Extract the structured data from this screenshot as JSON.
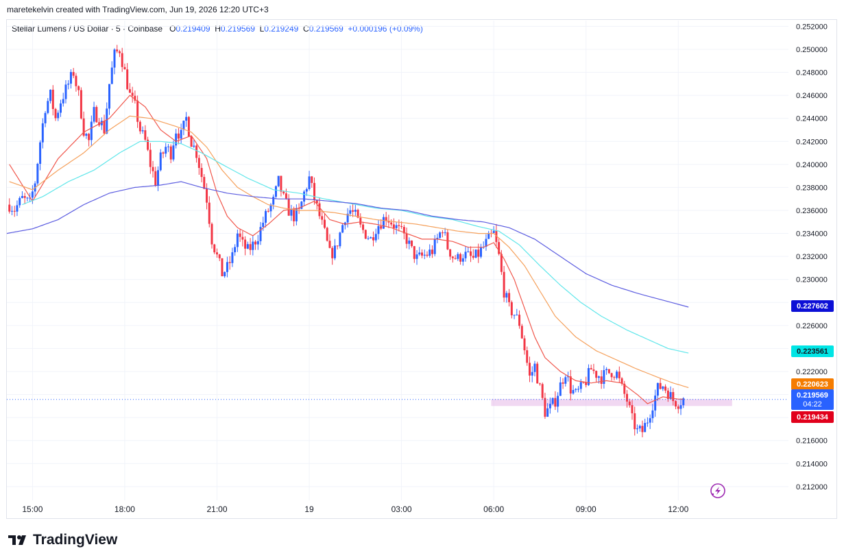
{
  "header": {
    "credit": "maretekelvin created with TradingView.com, Jun 19, 2026 12:20 UTC+3"
  },
  "legend": {
    "symbol": "Stellar Lumens / US Dollar · 5 · Coinbase",
    "open_label": "O",
    "open": "0.219409",
    "high_label": "H",
    "high": "0.219569",
    "low_label": "L",
    "low": "0.219249",
    "close_label": "C",
    "close": "0.219569",
    "change": "+0.000196 (+0.09%)"
  },
  "price_badges": [
    {
      "label": "0.227602",
      "color": "#0c0fd6"
    },
    {
      "label": "0.223561",
      "color": "#00e5e5"
    },
    {
      "label": "0.220623",
      "color": "#f57c00"
    },
    {
      "label": "0.219569",
      "sub": "04:22",
      "color": "#2962ff"
    },
    {
      "label": "0.219434",
      "color": "#e1001b"
    }
  ],
  "footer": {
    "brand": "TradingView"
  },
  "chart_data": {
    "type": "candlestick",
    "title": "Stellar Lumens / US Dollar · 5 · Coinbase",
    "interval": "5",
    "exchange": "Coinbase",
    "ylim": [
      0.2108,
      0.2525
    ],
    "ytick_values": [
      0.212,
      0.214,
      0.216,
      0.218,
      0.22,
      0.222,
      0.224,
      0.226,
      0.228,
      0.23,
      0.232,
      0.234,
      0.236,
      0.238,
      0.24,
      0.242,
      0.244,
      0.246,
      0.248,
      0.25,
      0.252
    ],
    "ytick_labels": [
      "0.212000",
      "0.214000",
      "0.216000",
      "0.218000",
      "0.220000",
      "0.222000",
      "0.224000",
      "0.226000",
      "0.228000",
      "0.230000",
      "0.232000",
      "0.234000",
      "0.236000",
      "0.238000",
      "0.240000",
      "0.242000",
      "0.244000",
      "0.246000",
      "0.248000",
      "0.250000",
      "0.252000"
    ],
    "xticks": [
      {
        "label": "15:00",
        "t": 0
      },
      {
        "label": "18:00",
        "t": 36
      },
      {
        "label": "21:00",
        "t": 72
      },
      {
        "label": "19",
        "t": 108
      },
      {
        "label": "03:00",
        "t": 144
      },
      {
        "label": "06:00",
        "t": 180
      },
      {
        "label": "09:00",
        "t": 216
      },
      {
        "label": "12:00",
        "t": 252
      }
    ],
    "x_range": [
      -10,
      295
    ],
    "up_color": "#2962ff",
    "down_color": "#f23645",
    "close_anchors": [
      [
        -9,
        0.2365
      ],
      [
        -7,
        0.2361
      ],
      [
        -4,
        0.237
      ],
      [
        -1,
        0.2366
      ],
      [
        1,
        0.2385
      ],
      [
        3,
        0.242
      ],
      [
        5,
        0.245
      ],
      [
        7,
        0.246
      ],
      [
        9,
        0.244
      ],
      [
        11,
        0.2455
      ],
      [
        14,
        0.247
      ],
      [
        16,
        0.248
      ],
      [
        18,
        0.246
      ],
      [
        20,
        0.243
      ],
      [
        22,
        0.242
      ],
      [
        24,
        0.2445
      ],
      [
        26,
        0.244
      ],
      [
        28,
        0.243
      ],
      [
        30,
        0.247
      ],
      [
        32,
        0.2495
      ],
      [
        34,
        0.25
      ],
      [
        36,
        0.248
      ],
      [
        38,
        0.246
      ],
      [
        40,
        0.245
      ],
      [
        42,
        0.243
      ],
      [
        44,
        0.242
      ],
      [
        46,
        0.24
      ],
      [
        48,
        0.2385
      ],
      [
        50,
        0.2405
      ],
      [
        52,
        0.2415
      ],
      [
        54,
        0.241
      ],
      [
        56,
        0.243
      ],
      [
        58,
        0.2425
      ],
      [
        60,
        0.244
      ],
      [
        62,
        0.242
      ],
      [
        64,
        0.241
      ],
      [
        66,
        0.239
      ],
      [
        68,
        0.237
      ],
      [
        70,
        0.2335
      ],
      [
        72,
        0.232
      ],
      [
        74,
        0.2305
      ],
      [
        76,
        0.231
      ],
      [
        78,
        0.232
      ],
      [
        80,
        0.234
      ],
      [
        82,
        0.233
      ],
      [
        84,
        0.2325
      ],
      [
        86,
        0.233
      ],
      [
        88,
        0.2338
      ],
      [
        90,
        0.235
      ],
      [
        92,
        0.236
      ],
      [
        94,
        0.2368
      ],
      [
        96,
        0.2385
      ],
      [
        98,
        0.237
      ],
      [
        100,
        0.236
      ],
      [
        102,
        0.2355
      ],
      [
        104,
        0.2358
      ],
      [
        106,
        0.2375
      ],
      [
        108,
        0.2388
      ],
      [
        110,
        0.237
      ],
      [
        112,
        0.2355
      ],
      [
        114,
        0.234
      ],
      [
        116,
        0.2322
      ],
      [
        118,
        0.2325
      ],
      [
        120,
        0.234
      ],
      [
        122,
        0.2355
      ],
      [
        124,
        0.236
      ],
      [
        126,
        0.2355
      ],
      [
        128,
        0.2345
      ],
      [
        130,
        0.234
      ],
      [
        132,
        0.2335
      ],
      [
        134,
        0.2345
      ],
      [
        136,
        0.235
      ],
      [
        138,
        0.2355
      ],
      [
        140,
        0.235
      ],
      [
        142,
        0.2345
      ],
      [
        144,
        0.234
      ],
      [
        146,
        0.2335
      ],
      [
        148,
        0.2325
      ],
      [
        150,
        0.2318
      ],
      [
        152,
        0.232
      ],
      [
        154,
        0.2322
      ],
      [
        156,
        0.2325
      ],
      [
        158,
        0.2335
      ],
      [
        160,
        0.2345
      ],
      [
        162,
        0.2328
      ],
      [
        164,
        0.232
      ],
      [
        166,
        0.2318
      ],
      [
        168,
        0.2322
      ],
      [
        170,
        0.232
      ],
      [
        172,
        0.2318
      ],
      [
        174,
        0.2322
      ],
      [
        176,
        0.2328
      ],
      [
        178,
        0.2335
      ],
      [
        180,
        0.234
      ],
      [
        182,
        0.232
      ],
      [
        184,
        0.229
      ],
      [
        186,
        0.2275
      ],
      [
        188,
        0.227
      ],
      [
        190,
        0.2262
      ],
      [
        192,
        0.224
      ],
      [
        194,
        0.2215
      ],
      [
        196,
        0.2225
      ],
      [
        198,
        0.2205
      ],
      [
        200,
        0.2185
      ],
      [
        202,
        0.2188
      ],
      [
        204,
        0.2195
      ],
      [
        206,
        0.2208
      ],
      [
        208,
        0.222
      ],
      [
        210,
        0.2205
      ],
      [
        212,
        0.22
      ],
      [
        214,
        0.2205
      ],
      [
        216,
        0.2212
      ],
      [
        218,
        0.2222
      ],
      [
        220,
        0.2218
      ],
      [
        222,
        0.2215
      ],
      [
        224,
        0.2218
      ],
      [
        226,
        0.222
      ],
      [
        228,
        0.2218
      ],
      [
        230,
        0.2205
      ],
      [
        232,
        0.2195
      ],
      [
        234,
        0.2178
      ],
      [
        236,
        0.2168
      ],
      [
        238,
        0.2168
      ],
      [
        240,
        0.2178
      ],
      [
        242,
        0.2192
      ],
      [
        244,
        0.2205
      ],
      [
        246,
        0.2208
      ],
      [
        248,
        0.2202
      ],
      [
        250,
        0.2195
      ],
      [
        252,
        0.2193
      ],
      [
        254,
        0.2196
      ]
    ],
    "series": [
      {
        "name": "",
        "color": "#f0564b",
        "anchors": [
          [
            -9,
            0.24
          ],
          [
            0,
            0.2368
          ],
          [
            10,
            0.2405
          ],
          [
            20,
            0.2428
          ],
          [
            30,
            0.244
          ],
          [
            38,
            0.246
          ],
          [
            44,
            0.245
          ],
          [
            50,
            0.243
          ],
          [
            56,
            0.242
          ],
          [
            62,
            0.2425
          ],
          [
            68,
            0.2405
          ],
          [
            72,
            0.2375
          ],
          [
            76,
            0.2355
          ],
          [
            80,
            0.2345
          ],
          [
            86,
            0.2338
          ],
          [
            92,
            0.2348
          ],
          [
            98,
            0.236
          ],
          [
            104,
            0.2362
          ],
          [
            110,
            0.2368
          ],
          [
            116,
            0.2352
          ],
          [
            122,
            0.2348
          ],
          [
            128,
            0.235
          ],
          [
            134,
            0.2348
          ],
          [
            140,
            0.2345
          ],
          [
            146,
            0.234
          ],
          [
            152,
            0.2335
          ],
          [
            158,
            0.2335
          ],
          [
            164,
            0.2333
          ],
          [
            170,
            0.2328
          ],
          [
            176,
            0.2328
          ],
          [
            180,
            0.2332
          ],
          [
            184,
            0.2318
          ],
          [
            188,
            0.23
          ],
          [
            192,
            0.2275
          ],
          [
            196,
            0.225
          ],
          [
            200,
            0.2232
          ],
          [
            206,
            0.222
          ],
          [
            212,
            0.2212
          ],
          [
            218,
            0.221
          ],
          [
            224,
            0.2212
          ],
          [
            230,
            0.221
          ],
          [
            236,
            0.22
          ],
          [
            240,
            0.2192
          ],
          [
            246,
            0.2198
          ],
          [
            252,
            0.2196
          ],
          [
            254,
            0.2196
          ]
        ]
      },
      {
        "name": "",
        "color": "#f5a05b",
        "anchors": [
          [
            -9,
            0.2385
          ],
          [
            0,
            0.2378
          ],
          [
            10,
            0.2395
          ],
          [
            20,
            0.241
          ],
          [
            30,
            0.243
          ],
          [
            38,
            0.2442
          ],
          [
            46,
            0.244
          ],
          [
            56,
            0.2433
          ],
          [
            62,
            0.2428
          ],
          [
            68,
            0.2415
          ],
          [
            74,
            0.2395
          ],
          [
            80,
            0.238
          ],
          [
            86,
            0.2372
          ],
          [
            92,
            0.2365
          ],
          [
            98,
            0.2362
          ],
          [
            104,
            0.236
          ],
          [
            110,
            0.236
          ],
          [
            118,
            0.2358
          ],
          [
            126,
            0.2355
          ],
          [
            134,
            0.2352
          ],
          [
            142,
            0.235
          ],
          [
            150,
            0.2348
          ],
          [
            158,
            0.2345
          ],
          [
            166,
            0.2342
          ],
          [
            174,
            0.234
          ],
          [
            180,
            0.234
          ],
          [
            186,
            0.2328
          ],
          [
            192,
            0.2312
          ],
          [
            198,
            0.229
          ],
          [
            204,
            0.2268
          ],
          [
            212,
            0.225
          ],
          [
            220,
            0.2238
          ],
          [
            228,
            0.223
          ],
          [
            236,
            0.2222
          ],
          [
            244,
            0.2215
          ],
          [
            250,
            0.221
          ],
          [
            256,
            0.2206
          ]
        ]
      },
      {
        "name": "",
        "color": "#5ee6ea",
        "anchors": [
          [
            -4,
            0.2365
          ],
          [
            4,
            0.2372
          ],
          [
            14,
            0.2385
          ],
          [
            24,
            0.2395
          ],
          [
            34,
            0.241
          ],
          [
            42,
            0.242
          ],
          [
            50,
            0.242
          ],
          [
            58,
            0.2418
          ],
          [
            66,
            0.241
          ],
          [
            74,
            0.24
          ],
          [
            84,
            0.2388
          ],
          [
            94,
            0.2378
          ],
          [
            104,
            0.2375
          ],
          [
            114,
            0.237
          ],
          [
            124,
            0.2366
          ],
          [
            134,
            0.2362
          ],
          [
            144,
            0.236
          ],
          [
            154,
            0.2355
          ],
          [
            164,
            0.2352
          ],
          [
            174,
            0.2346
          ],
          [
            182,
            0.2342
          ],
          [
            190,
            0.233
          ],
          [
            198,
            0.2312
          ],
          [
            206,
            0.2295
          ],
          [
            214,
            0.228
          ],
          [
            222,
            0.2268
          ],
          [
            232,
            0.2256
          ],
          [
            240,
            0.2248
          ],
          [
            248,
            0.224
          ],
          [
            256,
            0.2236
          ]
        ]
      },
      {
        "name": "",
        "color": "#5b5ce0",
        "anchors": [
          [
            -10,
            0.234
          ],
          [
            0,
            0.2344
          ],
          [
            10,
            0.2352
          ],
          [
            20,
            0.2365
          ],
          [
            30,
            0.2375
          ],
          [
            40,
            0.238
          ],
          [
            50,
            0.2382
          ],
          [
            58,
            0.2385
          ],
          [
            66,
            0.238
          ],
          [
            76,
            0.2375
          ],
          [
            86,
            0.2372
          ],
          [
            96,
            0.237
          ],
          [
            106,
            0.237
          ],
          [
            116,
            0.2368
          ],
          [
            126,
            0.2366
          ],
          [
            136,
            0.2362
          ],
          [
            146,
            0.236
          ],
          [
            156,
            0.2355
          ],
          [
            166,
            0.2352
          ],
          [
            176,
            0.235
          ],
          [
            186,
            0.2345
          ],
          [
            196,
            0.2335
          ],
          [
            206,
            0.232
          ],
          [
            216,
            0.2305
          ],
          [
            226,
            0.2295
          ],
          [
            236,
            0.2288
          ],
          [
            246,
            0.2282
          ],
          [
            256,
            0.2276
          ]
        ]
      }
    ],
    "support_zone": {
      "t_start": 179,
      "t_end": 273,
      "y_low": 0.219,
      "y_high": 0.2196,
      "color": "#e6b8e8"
    },
    "last_price_line": 0.219569
  }
}
